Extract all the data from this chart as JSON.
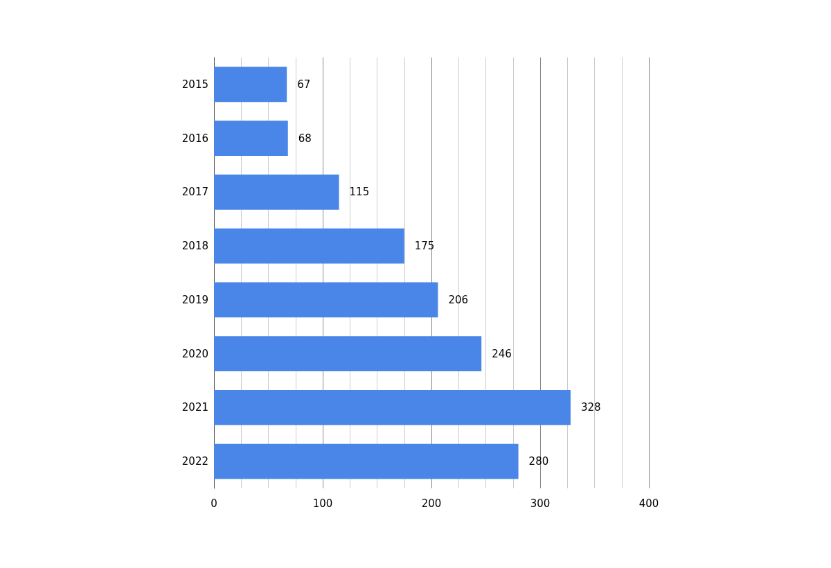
{
  "chart_data": {
    "type": "bar",
    "orientation": "horizontal",
    "categories": [
      "2015",
      "2016",
      "2017",
      "2018",
      "2019",
      "2020",
      "2021",
      "2022"
    ],
    "values": [
      67,
      68,
      115,
      175,
      206,
      246,
      328,
      280
    ],
    "color": "#4a86e8",
    "xlim": [
      0,
      400
    ],
    "xticks": [
      0,
      {
        "value": 25,
        "label": null
      },
      {
        "value": 50,
        "label": null
      },
      {
        "value": 75,
        "label": null
      },
      100,
      {
        "value": 125,
        "label": null
      },
      {
        "value": 150,
        "label": null
      },
      {
        "value": 175,
        "label": null
      },
      200,
      {
        "value": 225,
        "label": null
      },
      {
        "value": 250,
        "label": null
      },
      {
        "value": 275,
        "label": null
      },
      300,
      {
        "value": 325,
        "label": null
      },
      {
        "value": 350,
        "label": null
      },
      {
        "value": 375,
        "label": null
      },
      400
    ],
    "grid": "x",
    "data_labels": true
  }
}
